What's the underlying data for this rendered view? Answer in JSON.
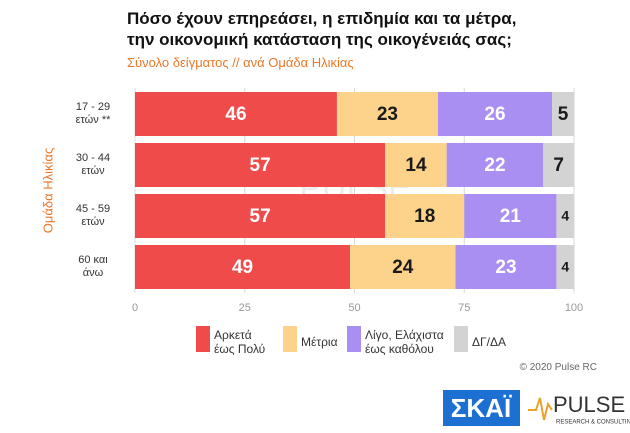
{
  "chart_data": {
    "type": "stacked-bar-horizontal",
    "title": "Πόσο έχουν επηρεάσει, η επιδημία και τα μέτρα,\nτην οικονομική κατάσταση της οικογένειάς σας;",
    "subtitle": "Σύνολο δείγματος // ανά Ομάδα Ηλικίας",
    "y_axis_title": "Ομάδα Ηλικίας",
    "categories": [
      "17 - 29\nετών **",
      "30 - 44\nετών",
      "45 - 59\nετών",
      "60 και\nάνω"
    ],
    "series": [
      {
        "name": "Αρκετά\nέως Πολύ",
        "color": "#ef4b4b",
        "label_color": "#ffffff",
        "values": [
          46,
          57,
          57,
          49
        ]
      },
      {
        "name": "Μέτρια",
        "color": "#fdd38b",
        "label_color": "#1a1a1a",
        "values": [
          23,
          14,
          18,
          24
        ]
      },
      {
        "name": "Λίγο, Ελάχιστα\nέως καθόλου",
        "color": "#a98ff2",
        "label_color": "#ffffff",
        "values": [
          26,
          22,
          21,
          23
        ]
      },
      {
        "name": "ΔΓ/ΔΑ",
        "color": "#d3d3d3",
        "label_color": "#1a1a1a",
        "values": [
          5,
          7,
          4,
          4
        ]
      }
    ],
    "xlim": [
      0,
      100
    ],
    "xticks": [
      0,
      25,
      50,
      75,
      100
    ],
    "grid": true,
    "copyright": "© 2020 Pulse RC",
    "logo_skai": "ΣΚΑΪ",
    "logo_pulse": "PULSE",
    "logo_pulse_sub": "RESEARCH & CONSULTING"
  }
}
